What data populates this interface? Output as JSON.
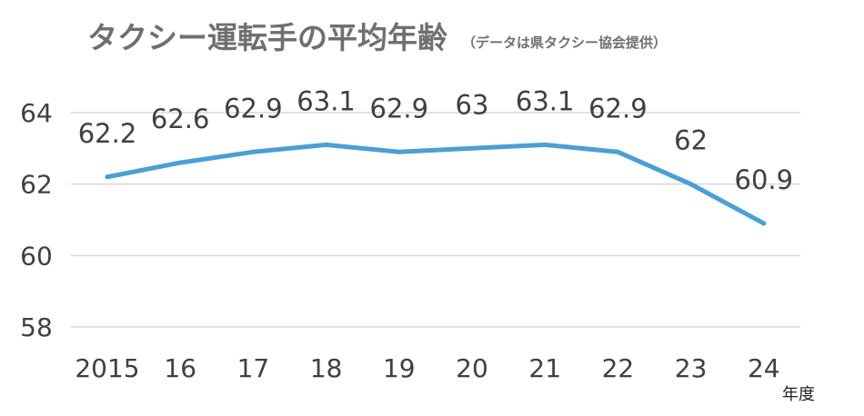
{
  "chart_data": {
    "type": "line",
    "title": "タクシー運転手の平均年齢",
    "subtitle": "（データは県タクシー協会提供）",
    "x_unit": "年度",
    "categories": [
      "2015",
      "16",
      "17",
      "18",
      "19",
      "20",
      "21",
      "22",
      "23",
      "24"
    ],
    "series": [
      {
        "values": [
          62.2,
          62.6,
          62.9,
          63.1,
          62.9,
          63.0,
          63.1,
          62.9,
          62.0,
          60.9
        ],
        "data_labels": [
          "62.2",
          "62.6",
          "62.9",
          "63.1",
          "62.9",
          "63",
          "63.1",
          "62.9",
          "62",
          "60.9"
        ],
        "color": "#4a9fd5"
      }
    ],
    "ylim": [
      58,
      64
    ],
    "yticks": [
      {
        "value": 58,
        "label": "58"
      },
      {
        "value": 60,
        "label": "60"
      },
      {
        "value": 62,
        "label": "62"
      },
      {
        "value": 64,
        "label": "64"
      }
    ],
    "grid": true,
    "legend": "none"
  }
}
